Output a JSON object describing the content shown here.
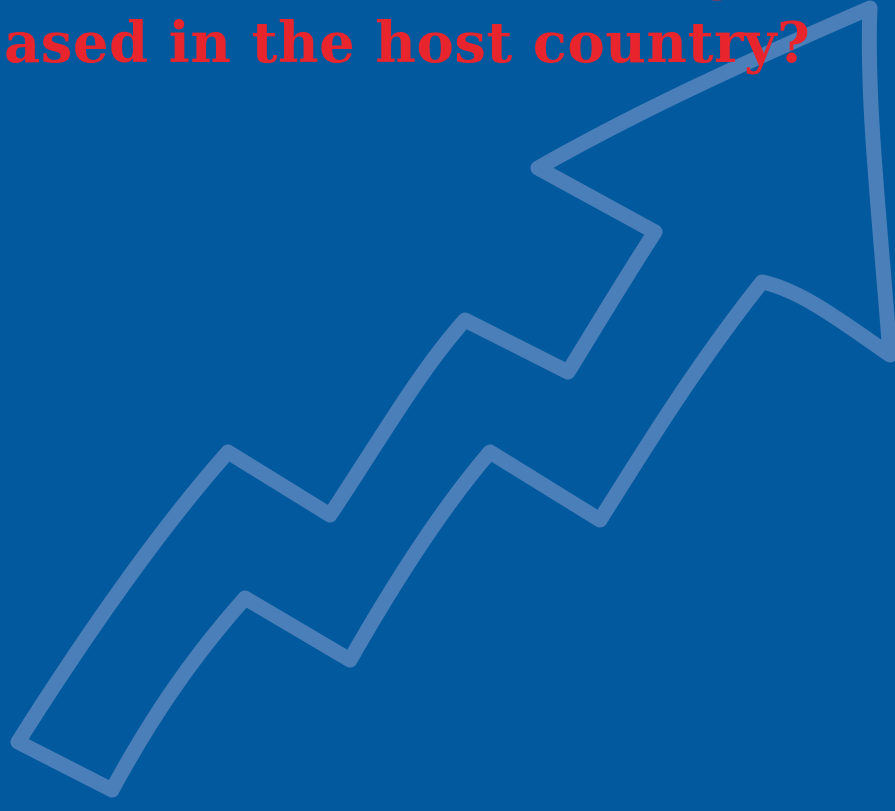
{
  "headline": {
    "line_1": "g",
    "line_2": "ased in the host country?"
  },
  "graphic": {
    "icon": "rising-arrow-icon",
    "background_color": "#02599d",
    "arrow_color": "#4a7fb9",
    "headline_color": "#e8242c"
  }
}
